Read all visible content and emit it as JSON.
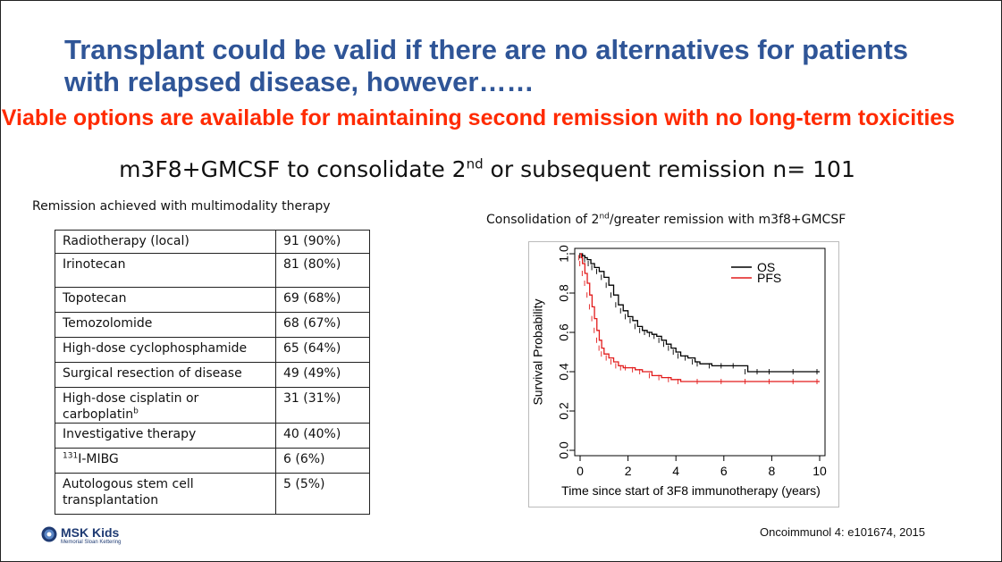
{
  "slide": {
    "title": "Transplant could be valid if there are no alternatives for patients with relapsed disease, however……",
    "subtitle": "Viable options are available for maintaining second remission with no long-term toxicities",
    "heading_pre": "m3F8+GMCSF to consolidate 2",
    "heading_sup": "nd",
    "heading_post": " or subsequent remission n= 101",
    "table_caption": "Remission achieved with multimodality therapy",
    "chart_caption_pre": "Consolidation of 2",
    "chart_caption_sup": "nd",
    "chart_caption_post": "/greater remission with m3f8+GMCSF",
    "logo_text": "MSK Kids",
    "logo_subtext": "Memorial Sloan Kettering",
    "citation": "Oncoimmunol 4: e101674, 2015",
    "colors": {
      "title": "#2f5597",
      "subtitle": "#ff2a00",
      "os": "#000000",
      "pfs": "#e21b1b",
      "logo": "#1f3b73"
    }
  },
  "table": {
    "rows": [
      {
        "pre": "",
        "name": "Radiotherapy (local)",
        "sup": "",
        "value": "91 (90%)"
      },
      {
        "pre": "",
        "name": "Irinotecan",
        "sup": "",
        "value": "81 (80%)"
      },
      {
        "pre": "",
        "name": "Topotecan",
        "sup": "",
        "value": "69 (68%)"
      },
      {
        "pre": "",
        "name": "Temozolomide",
        "sup": "",
        "value": "68 (67%)"
      },
      {
        "pre": "",
        "name": "High-dose cyclophosphamide",
        "sup": "",
        "value": "65 (64%)"
      },
      {
        "pre": "",
        "name": "Surgical resection of disease",
        "sup": "",
        "value": "49 (49%)"
      },
      {
        "pre": "",
        "name": "High-dose cisplatin or carboplatin",
        "sup": "b",
        "value": "31 (31%)"
      },
      {
        "pre": "",
        "name": "Investigative therapy",
        "sup": "",
        "value": "40 (40%)"
      },
      {
        "pre": "131",
        "name": "I-MIBG",
        "sup": "",
        "value": "6 (6%)"
      },
      {
        "pre": "",
        "name": "Autologous stem cell transplantation",
        "sup": "",
        "value": "5 (5%)"
      }
    ]
  },
  "chart_data": {
    "type": "line",
    "title": "",
    "xlabel": "Time since start of 3F8 immunotherapy (years)",
    "ylabel": "Survival Probability",
    "xlim": [
      0,
      10
    ],
    "ylim": [
      0,
      1
    ],
    "xticks": [
      "0",
      "2",
      "4",
      "6",
      "8",
      "10"
    ],
    "yticks": [
      "0.0",
      "0.2",
      "0.4",
      "0.6",
      "0.8",
      "1.0"
    ],
    "legend": {
      "placement": "top-right"
    },
    "grid": false,
    "series": [
      {
        "name": "OS",
        "color": "#000000",
        "x": [
          0,
          0.1,
          0.2,
          0.3,
          0.45,
          0.6,
          0.8,
          1.0,
          1.2,
          1.4,
          1.6,
          1.8,
          2.0,
          2.2,
          2.4,
          2.6,
          2.8,
          3.0,
          3.2,
          3.4,
          3.6,
          3.8,
          4.0,
          4.2,
          4.5,
          4.8,
          5.0,
          5.5,
          6.0,
          6.5,
          7.0,
          7.5,
          8.0,
          9.0,
          10.0
        ],
        "y": [
          1.0,
          0.99,
          0.98,
          0.97,
          0.95,
          0.93,
          0.91,
          0.88,
          0.84,
          0.79,
          0.74,
          0.71,
          0.68,
          0.66,
          0.63,
          0.61,
          0.6,
          0.59,
          0.58,
          0.56,
          0.54,
          0.52,
          0.5,
          0.48,
          0.47,
          0.45,
          0.44,
          0.43,
          0.43,
          0.43,
          0.4,
          0.4,
          0.4,
          0.4,
          0.4
        ]
      },
      {
        "name": "PFS",
        "color": "#e21b1b",
        "x": [
          0,
          0.05,
          0.1,
          0.2,
          0.3,
          0.4,
          0.5,
          0.6,
          0.7,
          0.8,
          0.9,
          1.0,
          1.2,
          1.4,
          1.6,
          1.8,
          2.0,
          2.3,
          2.6,
          3.0,
          3.4,
          3.8,
          4.2,
          5.0,
          6.0,
          7.0,
          8.0,
          9.0,
          10.0
        ],
        "y": [
          1.0,
          0.98,
          0.95,
          0.9,
          0.85,
          0.79,
          0.73,
          0.67,
          0.61,
          0.56,
          0.52,
          0.49,
          0.47,
          0.45,
          0.43,
          0.42,
          0.42,
          0.41,
          0.4,
          0.38,
          0.37,
          0.36,
          0.35,
          0.35,
          0.35,
          0.35,
          0.35,
          0.35,
          0.35
        ]
      }
    ]
  }
}
